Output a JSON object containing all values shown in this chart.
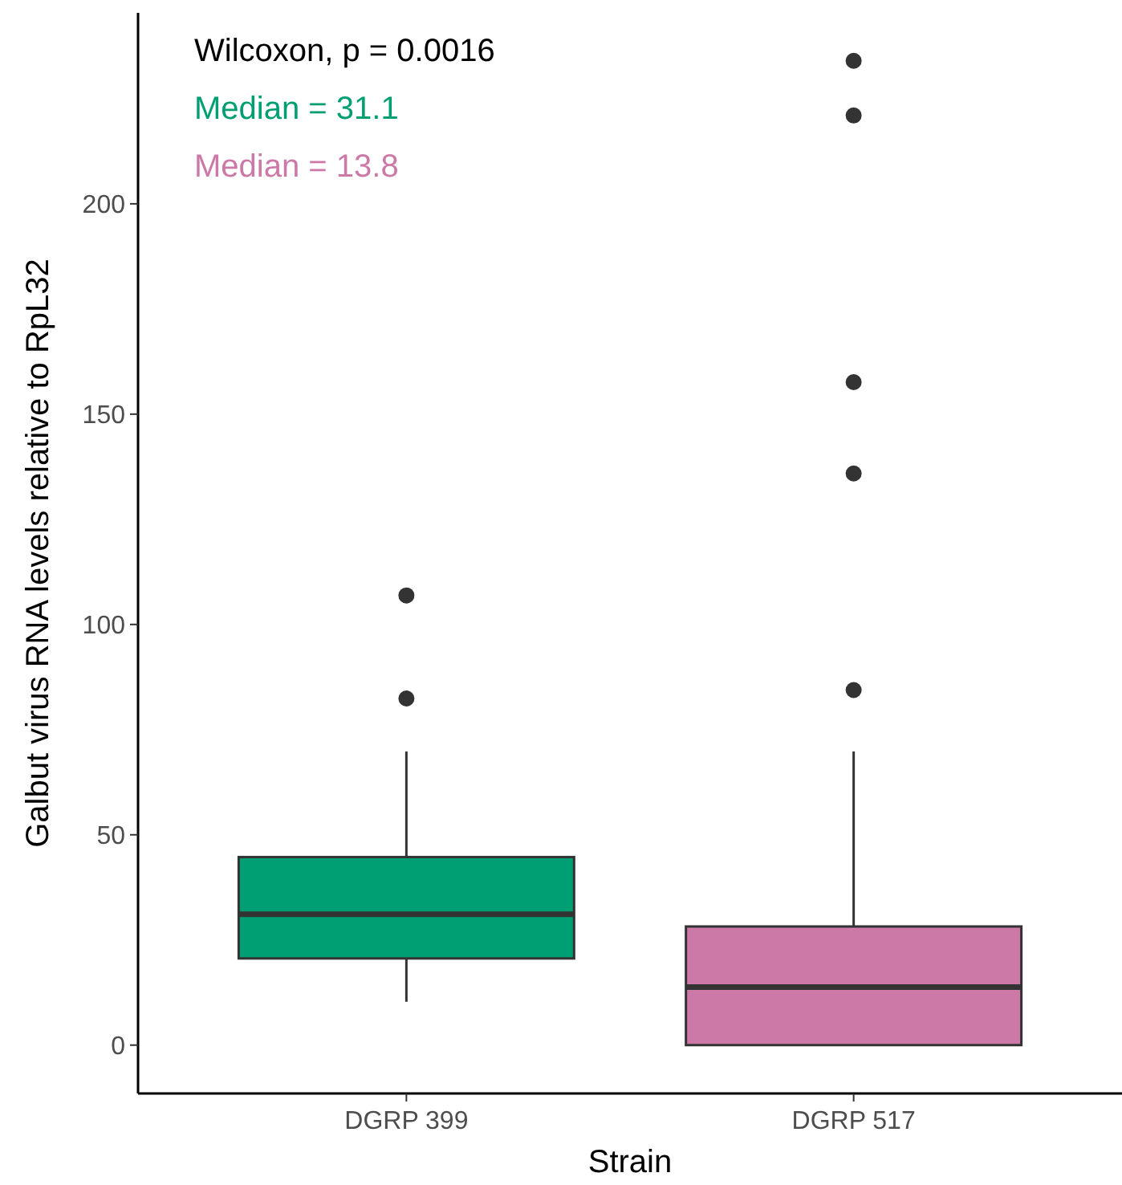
{
  "chart_data": {
    "type": "box",
    "xlabel": "Strain",
    "ylabel": "Galbut virus RNA levels relative to RpL32",
    "categories": [
      "DGRP 399",
      "DGRP 517"
    ],
    "colors": [
      "#009e73",
      "#cc79a7"
    ],
    "boxes": [
      {
        "low": 10.3,
        "q1": 20.6,
        "median": 31.1,
        "q3": 44.7,
        "high": 69.8,
        "outliers": [
          82.4,
          106.9
        ]
      },
      {
        "low": 0,
        "q1": 0,
        "median": 13.8,
        "q3": 28.2,
        "high": 69.8,
        "outliers": [
          84.4,
          135.9,
          157.6,
          221,
          234
        ]
      }
    ],
    "ylim": [
      -11.5,
      245.4
    ],
    "yticks": [
      0,
      50,
      100,
      150,
      200
    ],
    "grid": false,
    "annotations": [
      "Wilcoxon, p = 0.0016",
      "Median = 31.1",
      "Median = 13.8"
    ]
  }
}
